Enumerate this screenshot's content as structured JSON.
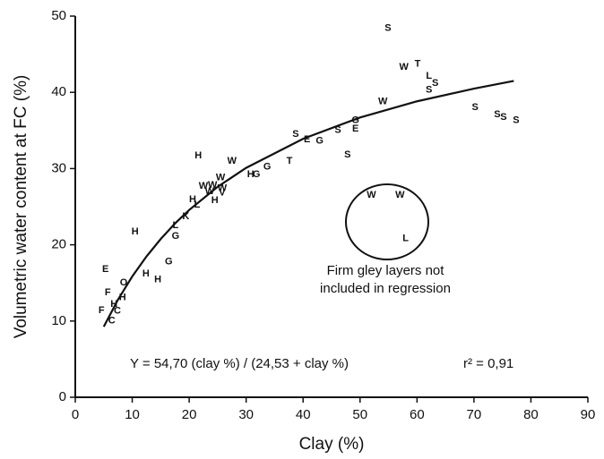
{
  "chart_data": {
    "type": "scatter",
    "xlabel": "Clay (%)",
    "ylabel": "Volumetric water content at FC (%)",
    "xlim": [
      0,
      90
    ],
    "xticks": [
      0,
      10,
      20,
      30,
      40,
      50,
      60,
      70,
      80,
      90
    ],
    "ylim": [
      0,
      50
    ],
    "yticks": [
      0,
      10,
      20,
      30,
      40,
      50
    ],
    "grid": false,
    "point_labels": [
      "S",
      "W",
      "T",
      "L",
      "S",
      "S",
      "W",
      "S",
      "S",
      "S",
      "S",
      "S",
      "S",
      "G",
      "E",
      "E",
      "G",
      "S",
      "T",
      "G",
      "G",
      "H",
      "W",
      "H",
      "W",
      "W",
      "W",
      "W",
      "W",
      "H",
      "V",
      "L",
      "H",
      "K",
      "L",
      "G",
      "H",
      "G",
      "H",
      "H",
      "E",
      "O",
      "F",
      "H",
      "H",
      "F",
      "C",
      "C",
      "W",
      "W",
      "L"
    ],
    "x": [
      54.9,
      57.7,
      60.1,
      62.1,
      63.2,
      62.1,
      54.0,
      70.2,
      74.1,
      75.2,
      77.4,
      38.7,
      46.1,
      49.2,
      49.2,
      40.7,
      42.9,
      47.8,
      37.6,
      33.7,
      31.8,
      30.8,
      27.5,
      21.6,
      25.5,
      22.5,
      24.1,
      25.8,
      23.6,
      24.5,
      25.8,
      21.4,
      20.6,
      19.4,
      17.6,
      17.6,
      10.5,
      16.4,
      12.4,
      14.5,
      5.3,
      8.5,
      5.7,
      8.3,
      6.8,
      4.6,
      7.4,
      6.4,
      52.0,
      57.0,
      58.0
    ],
    "values": [
      48.4,
      43.3,
      43.7,
      42.1,
      41.2,
      40.3,
      38.8,
      38.0,
      37.1,
      36.7,
      36.3,
      34.5,
      35.0,
      36.3,
      35.2,
      33.8,
      33.6,
      31.8,
      31.0,
      30.2,
      29.2,
      29.2,
      31.0,
      31.7,
      28.8,
      27.7,
      27.8,
      27.4,
      27.0,
      25.8,
      26.8,
      25.2,
      25.9,
      23.7,
      22.5,
      21.1,
      21.7,
      17.8,
      16.2,
      15.4,
      16.8,
      15.0,
      13.7,
      13.1,
      12.2,
      11.4,
      11.3,
      10.0,
      26.5,
      26.5,
      20.8
    ],
    "curve": {
      "x": [
        5,
        7.5,
        10,
        12.5,
        15,
        17.5,
        20,
        25,
        30,
        40,
        50,
        60,
        70,
        77
      ],
      "y": [
        9.26,
        12.81,
        15.84,
        18.47,
        20.76,
        22.79,
        24.57,
        27.61,
        30.09,
        33.91,
        36.7,
        38.82,
        40.49,
        41.5
      ]
    },
    "annotations": [
      "Firm gley layers not",
      "included in regression",
      "Y = 54,70 (clay %) / (24,53 + clay %)",
      "r² = 0,91"
    ]
  }
}
